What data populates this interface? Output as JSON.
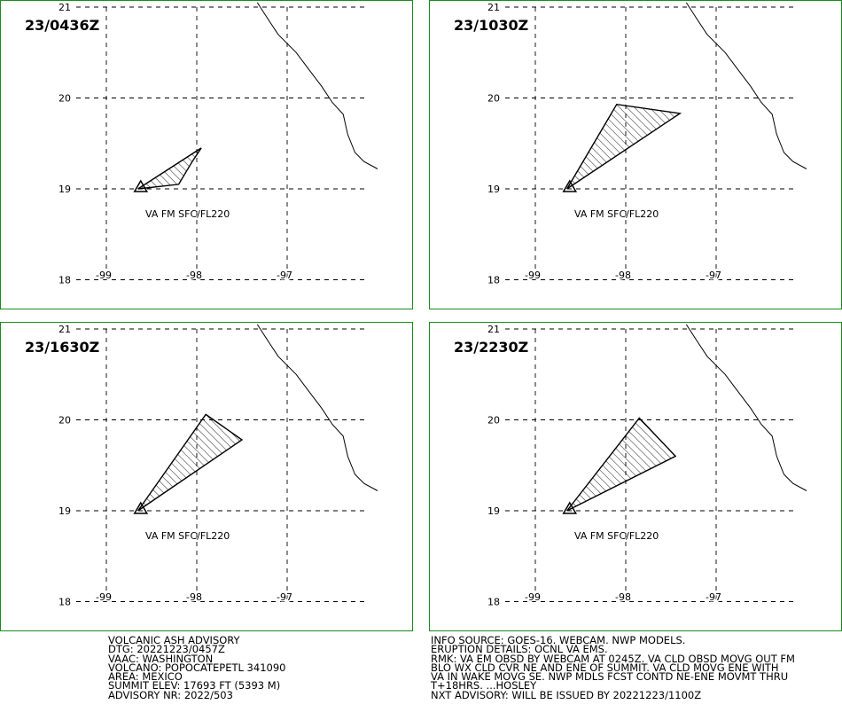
{
  "panels": [
    {
      "time": "23/0436Z",
      "va_label": "VA FM SFC/FL220",
      "polygon": [
        [
          -98.65,
          19.0
        ],
        [
          -97.95,
          19.45
        ],
        [
          -98.05,
          19.3
        ],
        [
          -98.2,
          19.05
        ],
        [
          -98.65,
          19.0
        ]
      ]
    },
    {
      "time": "23/1030Z",
      "va_label": "VA FM SFC/FL220",
      "polygon": [
        [
          -98.65,
          19.0
        ],
        [
          -98.1,
          19.93
        ],
        [
          -97.4,
          19.83
        ],
        [
          -98.65,
          19.0
        ]
      ]
    },
    {
      "time": "23/1630Z",
      "va_label": "VA FM SFC/FL220",
      "polygon": [
        [
          -98.65,
          19.0
        ],
        [
          -97.9,
          20.06
        ],
        [
          -97.5,
          19.78
        ],
        [
          -98.65,
          19.0
        ]
      ]
    },
    {
      "time": "23/2230Z",
      "va_label": "VA FM SFC/FL220",
      "polygon": [
        [
          -98.65,
          19.0
        ],
        [
          -97.85,
          20.02
        ],
        [
          -97.45,
          19.6
        ],
        [
          -98.65,
          19.0
        ]
      ]
    }
  ],
  "map": {
    "lon_range": [
      -99.45,
      -96.15
    ],
    "lat_range": [
      17.95,
      21.05
    ],
    "lat_ticks": [
      "21",
      "20",
      "19",
      "18"
    ],
    "lon_ticks": [
      "-99",
      "-98",
      "-97"
    ],
    "volcano": {
      "lon": -98.62,
      "lat": 19.02
    },
    "coastline": [
      [
        -97.33,
        21.05
      ],
      [
        -97.2,
        20.85
      ],
      [
        -97.1,
        20.7
      ],
      [
        -96.9,
        20.5
      ],
      [
        -96.75,
        20.3
      ],
      [
        -96.62,
        20.13
      ],
      [
        -96.5,
        19.95
      ],
      [
        -96.38,
        19.82
      ],
      [
        -96.33,
        19.6
      ],
      [
        -96.25,
        19.4
      ],
      [
        -96.15,
        19.3
      ],
      [
        -96.0,
        19.22
      ]
    ],
    "frame_color": "#1a8c1a",
    "grid_color": "#000000"
  },
  "advisory_left": [
    "VOLCANIC ASH ADVISORY",
    "DTG: 20221223/0457Z",
    "VAAC: WASHINGTON",
    "VOLCANO: POPOCATEPETL 341090",
    "AREA: MEXICO",
    "SUMMIT ELEV: 17693 FT (5393 M)",
    "ADVISORY NR: 2022/503"
  ],
  "advisory_right": [
    "INFO SOURCE: GOES-16. WEBCAM. NWP MODELS.",
    "ERUPTION DETAILS: OCNL VA EMS.",
    "RMK: VA EM OBSD BY WEBCAM AT 0245Z. VA CLD OBSD MOVG OUT FM",
    "BLO WX CLD CVR NE AND ENE OF SUMMIT. VA CLD MOVG ENE WITH",
    "VA IN WAKE MOVG SE. NWP MDLS FCST CONTD NE-ENE MOVMT THRU",
    "T+18HRS. ...HOSLEY",
    "NXT ADVISORY: WILL BE ISSUED BY 20221223/1100Z"
  ]
}
